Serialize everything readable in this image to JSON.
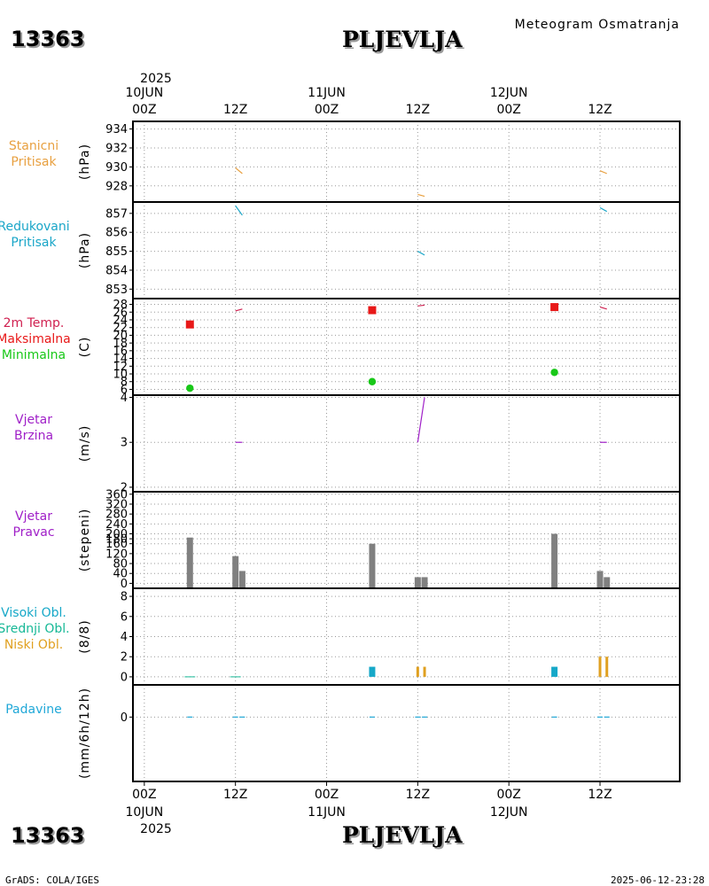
{
  "header": {
    "station_id": "13363",
    "station_name": "PLJEVLJA",
    "title": "Meteogram Osmatranja"
  },
  "footer": {
    "station_id": "13363",
    "station_name": "PLJEVLJA",
    "credit": "GrADS: COLA/IGES",
    "timestamp": "2025-06-12-23:28"
  },
  "time_axis": {
    "year": "2025",
    "ticks": [
      {
        "hour": "00Z",
        "date": "10JUN"
      },
      {
        "hour": "12Z",
        "date": ""
      },
      {
        "hour": "00Z",
        "date": "11JUN"
      },
      {
        "hour": "12Z",
        "date": ""
      },
      {
        "hour": "00Z",
        "date": "12JUN"
      },
      {
        "hour": "12Z",
        "date": ""
      }
    ],
    "x_hours": [
      0,
      12,
      24,
      36,
      48,
      60
    ],
    "x_range_hours": [
      -1.5,
      70.5
    ]
  },
  "colors": {
    "stanicni": "#e8a040",
    "redukovani": "#1aa6c8",
    "temp_label": "#d02050",
    "max": "#e81818",
    "min": "#18c818",
    "wind": "#a020c8",
    "dir_bar": "#808080",
    "high_cloud": "#16a8c8",
    "mid_cloud": "#16b896",
    "low_cloud": "#e0a020",
    "precip": "#20a8d8"
  },
  "chart_data": [
    {
      "type": "line",
      "id": "stanicni",
      "label_lines": [
        "Stanicni",
        "Pritisak"
      ],
      "unit": "(hPa)",
      "y_ticks": [
        928,
        930,
        932,
        934
      ],
      "ylim": [
        926.3,
        934.8
      ],
      "series": [
        {
          "name": "Stanicni Pritisak",
          "points": [
            [
              12,
              929.9
            ],
            [
              12.9,
              929.3
            ]
          ]
        },
        {
          "name": "Stanicni Pritisak",
          "points": [
            [
              36,
              927.1
            ],
            [
              36.9,
              926.9
            ]
          ]
        },
        {
          "name": "Stanicni Pritisak",
          "points": [
            [
              60,
              929.6
            ],
            [
              60.9,
              929.3
            ]
          ]
        }
      ]
    },
    {
      "type": "line",
      "id": "redukovani",
      "label_lines": [
        "Redukovani",
        "Pritisak"
      ],
      "unit": "(hPa)",
      "y_ticks": [
        853,
        854,
        855,
        856,
        857
      ],
      "ylim": [
        852.5,
        857.6
      ],
      "series": [
        {
          "name": "Redukovani Pritisak",
          "points": [
            [
              12,
              857.4
            ],
            [
              12.9,
              856.9
            ]
          ]
        },
        {
          "name": "Redukovani Pritisak",
          "points": [
            [
              36,
              855.0
            ],
            [
              36.9,
              854.8
            ]
          ]
        },
        {
          "name": "Redukovani Pritisak",
          "points": [
            [
              60,
              857.3
            ],
            [
              60.9,
              857.1
            ]
          ]
        }
      ]
    },
    {
      "type": "scatter",
      "id": "temperatura",
      "label_lines": [
        "2m Temp.",
        "Maksimalna",
        "Minimalna"
      ],
      "unit": "(C)",
      "y_ticks": [
        6,
        8,
        10,
        12,
        14,
        16,
        18,
        20,
        22,
        24,
        26,
        28
      ],
      "ylim": [
        4.5,
        29.5
      ],
      "series": [
        {
          "name": "2m Temp.",
          "kind": "line",
          "points": [
            [
              12,
              26.3
            ],
            [
              12.9,
              26.8
            ]
          ]
        },
        {
          "name": "2m Temp.",
          "kind": "line",
          "points": [
            [
              36,
              27.6
            ],
            [
              36.9,
              27.8
            ]
          ]
        },
        {
          "name": "2m Temp.",
          "kind": "line",
          "points": [
            [
              60,
              27.3
            ],
            [
              60.9,
              26.8
            ]
          ]
        },
        {
          "name": "Maksimalna",
          "kind": "square",
          "points": [
            [
              6,
              22.8
            ],
            [
              30,
              26.5
            ],
            [
              54,
              27.3
            ]
          ]
        },
        {
          "name": "Minimalna",
          "kind": "dot",
          "points": [
            [
              6,
              6.3
            ],
            [
              30,
              8.0
            ],
            [
              54,
              10.4
            ]
          ]
        }
      ]
    },
    {
      "type": "line",
      "id": "vjetar_brzina",
      "label_lines": [
        "Vjetar",
        "Brzina"
      ],
      "unit": "(m/s)",
      "y_ticks": [
        2,
        3,
        4
      ],
      "ylim": [
        1.9,
        4.05
      ],
      "series": [
        {
          "name": "Vjetar Brzina",
          "points": [
            [
              12,
              3.0
            ],
            [
              12.9,
              3.0
            ]
          ]
        },
        {
          "name": "Vjetar Brzina",
          "points": [
            [
              36,
              3.0
            ],
            [
              36.9,
              4.0
            ]
          ]
        },
        {
          "name": "Vjetar Brzina",
          "points": [
            [
              60,
              3.0
            ],
            [
              60.9,
              3.0
            ]
          ]
        }
      ]
    },
    {
      "type": "bar",
      "id": "vjetar_pravac",
      "label_lines": [
        "Vjetar",
        "Pravac"
      ],
      "unit": "(stepeni)",
      "y_ticks": [
        0,
        40,
        80,
        120,
        160,
        180,
        200,
        240,
        280,
        320,
        360
      ],
      "ylim": [
        -20,
        370
      ],
      "bars": [
        {
          "x": 6,
          "value": 185
        },
        {
          "x": 12,
          "value": 110
        },
        {
          "x": 12.9,
          "value": 50
        },
        {
          "x": 30,
          "value": 160
        },
        {
          "x": 36,
          "value": 25
        },
        {
          "x": 36.9,
          "value": 25
        },
        {
          "x": 54,
          "value": 200
        },
        {
          "x": 60,
          "value": 50
        },
        {
          "x": 60.9,
          "value": 25
        }
      ]
    },
    {
      "type": "bar",
      "id": "oblacnost",
      "label_lines": [
        "Visoki Obl.",
        "Srednji Obl.",
        "Niski Obl."
      ],
      "unit": "(8/8)",
      "y_ticks": [
        0,
        2,
        4,
        6,
        8
      ],
      "ylim": [
        -0.8,
        8.8
      ],
      "series": [
        {
          "name": "Visoki Obl.",
          "bars": [
            {
              "x": 30,
              "value": 1
            },
            {
              "x": 54,
              "value": 1
            }
          ]
        },
        {
          "name": "Srednji Obl.",
          "bars": [
            {
              "x": 6,
              "value": 0.05
            },
            {
              "x": 12,
              "value": 0.05
            }
          ]
        },
        {
          "name": "Niski Obl.",
          "bars": [
            {
              "x": 36,
              "value": 1
            },
            {
              "x": 36.9,
              "value": 1
            },
            {
              "x": 60,
              "value": 2
            },
            {
              "x": 60.9,
              "value": 2
            }
          ]
        }
      ]
    },
    {
      "type": "bar",
      "id": "padavine",
      "label_lines": [
        "Padavine"
      ],
      "unit": "(mm/6h/12h)",
      "y_ticks": [
        0
      ],
      "ylim": [
        -4.2,
        2.1
      ],
      "bars": [
        {
          "x": 6,
          "value": 0
        },
        {
          "x": 12,
          "value": 0
        },
        {
          "x": 12.9,
          "value": 0
        },
        {
          "x": 30,
          "value": 0
        },
        {
          "x": 36,
          "value": 0
        },
        {
          "x": 36.9,
          "value": 0
        },
        {
          "x": 54,
          "value": 0
        },
        {
          "x": 60,
          "value": 0
        },
        {
          "x": 60.9,
          "value": 0
        }
      ]
    }
  ]
}
